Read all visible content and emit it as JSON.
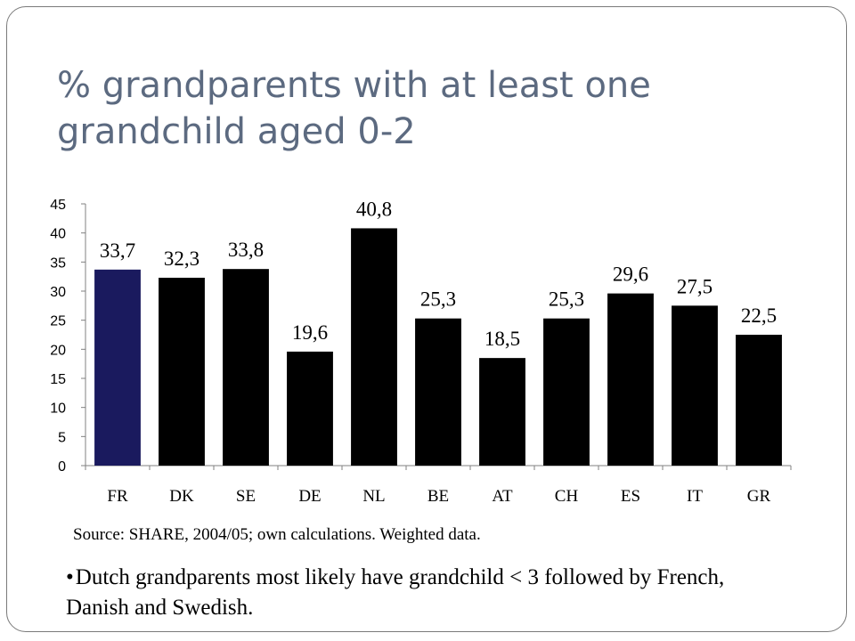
{
  "slide": {
    "title": "% grandparents with at least one grandchild aged 0-2",
    "source": "Source: SHARE, 2004/05; own calculations. Weighted data.",
    "note_bullet": "•",
    "note": "Dutch grandparents  most likely have grandchild < 3 followed by French, Danish and Swedish."
  },
  "chart_data": {
    "type": "bar",
    "categories": [
      "FR",
      "DK",
      "SE",
      "DE",
      "NL",
      "BE",
      "AT",
      "CH",
      "ES",
      "IT",
      "GR"
    ],
    "values": [
      33.7,
      32.3,
      33.8,
      19.6,
      40.8,
      25.3,
      18.5,
      25.3,
      29.6,
      27.5,
      22.5
    ],
    "data_labels": [
      "33,7",
      "32,3",
      "33,8",
      "19,6",
      "40,8",
      "25,3",
      "18,5",
      "25,3",
      "29,6",
      "27,5",
      "22,5"
    ],
    "ylim": [
      0,
      45
    ],
    "yticks": [
      0,
      5,
      10,
      15,
      20,
      25,
      30,
      35,
      40,
      45
    ],
    "grid": false,
    "highlight_category": "FR",
    "colors": {
      "bar": "#000000",
      "highlight": "#1a1a5e",
      "axis": "#808080"
    }
  }
}
